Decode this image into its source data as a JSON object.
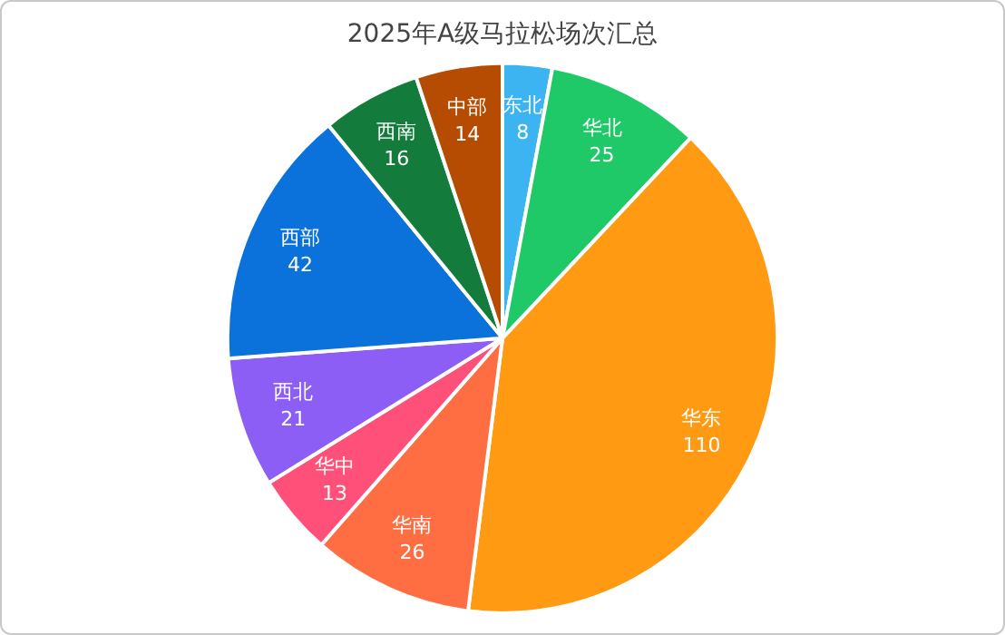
{
  "chart_data": {
    "type": "pie",
    "title": "2025年A级马拉松场次汇总",
    "categories": [
      "东北",
      "华北",
      "华东",
      "华南",
      "华中",
      "西北",
      "西部",
      "西南",
      "中部"
    ],
    "values": [
      8,
      25,
      110,
      26,
      13,
      21,
      42,
      16,
      14
    ],
    "colors": [
      "#3cb4f2",
      "#20c968",
      "#ff9a12",
      "#ff6e42",
      "#ff5079",
      "#8c5ef6",
      "#0a72da",
      "#137c3c",
      "#b64c02"
    ],
    "data_labels": true,
    "legend": false
  }
}
